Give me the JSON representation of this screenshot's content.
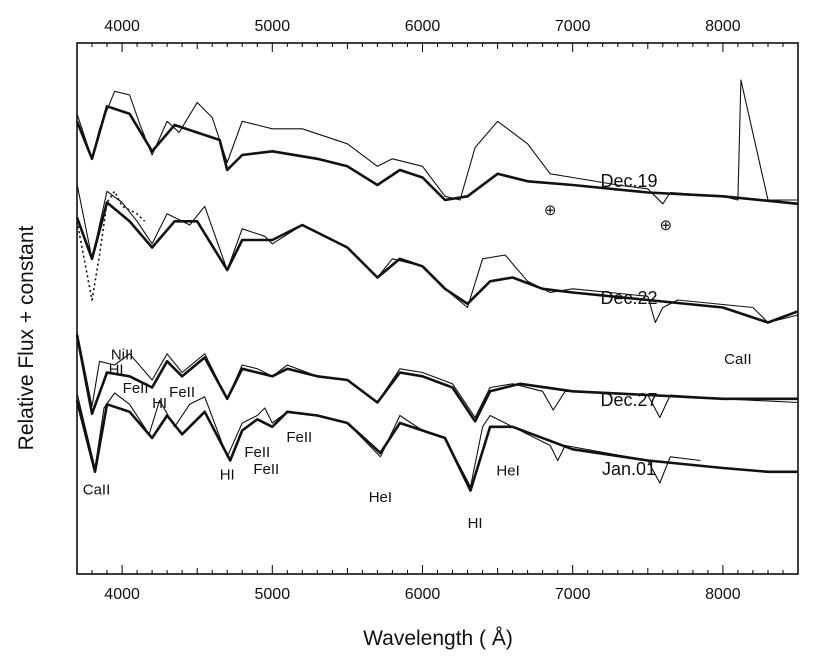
{
  "chart_data": {
    "type": "line",
    "title": "",
    "xlabel": "Wavelength ( Å)",
    "ylabel": "Relative Flux + constant",
    "xlim": [
      3700,
      8500
    ],
    "x_ticks": [
      4000,
      5000,
      6000,
      7000,
      8000
    ],
    "x_tick_labels": [
      "4000",
      "5000",
      "6000",
      "7000",
      "8000"
    ],
    "ticks_on_top_axis": true,
    "y_tick_labels": false,
    "grid": false,
    "epochs": [
      {
        "name": "Dec.19",
        "offset": 3.0
      },
      {
        "name": "Dec.22",
        "offset": 2.0
      },
      {
        "name": "Dec.27",
        "offset": 1.0
      },
      {
        "name": "Jan.01",
        "offset": 0.0
      }
    ],
    "series": [
      {
        "name": "Dec.19",
        "style": "thin observed",
        "x": [
          3700,
          3800,
          3850,
          3950,
          4050,
          4120,
          4200,
          4300,
          4380,
          4500,
          4600,
          4700,
          4800,
          4900,
          5000,
          5200,
          5500,
          5700,
          5800,
          6000,
          6150,
          6250,
          6350,
          6500,
          6700,
          6850,
          7000,
          7300,
          7500,
          7600,
          7650,
          8000,
          8100,
          8120,
          8300,
          8500
        ],
        "y": [
          1.15,
          0.55,
          0.95,
          1.45,
          1.4,
          1.0,
          0.6,
          1.05,
          0.9,
          1.3,
          1.1,
          0.5,
          1.05,
          1.0,
          0.95,
          0.95,
          0.75,
          0.45,
          0.55,
          0.45,
          0.05,
          0.0,
          0.7,
          1.05,
          0.75,
          0.35,
          0.3,
          0.2,
          0.15,
          -0.05,
          0.1,
          0.05,
          0.0,
          1.6,
          0.0,
          0.0
        ]
      },
      {
        "name": "Dec.19",
        "style": "thick synthetic",
        "x": [
          3700,
          3800,
          3900,
          4050,
          4200,
          4350,
          4500,
          4650,
          4700,
          4800,
          5000,
          5300,
          5500,
          5700,
          5850,
          6000,
          6150,
          6300,
          6500,
          6700,
          7000,
          7500,
          8000,
          8500
        ],
        "y": [
          1.05,
          0.55,
          1.25,
          1.15,
          0.65,
          1.0,
          0.9,
          0.8,
          0.4,
          0.6,
          0.65,
          0.55,
          0.45,
          0.2,
          0.4,
          0.3,
          0.0,
          0.05,
          0.35,
          0.25,
          0.2,
          0.1,
          0.05,
          -0.05
        ]
      },
      {
        "name": "Dec.22",
        "style": "thin observed",
        "x": [
          3700,
          3800,
          3900,
          4000,
          4100,
          4200,
          4300,
          4450,
          4550,
          4700,
          4800,
          4950,
          5000,
          5200,
          5500,
          5700,
          5800,
          6000,
          6150,
          6300,
          6400,
          6550,
          6700,
          6850,
          7000,
          7500,
          7550,
          7600,
          7700,
          8200,
          8300,
          8500
        ],
        "y": [
          1.55,
          0.55,
          1.45,
          1.3,
          1.05,
          0.75,
          1.15,
          1.0,
          1.25,
          0.4,
          0.95,
          0.85,
          0.75,
          1.0,
          0.7,
          0.3,
          0.55,
          0.45,
          0.15,
          -0.1,
          0.55,
          0.6,
          0.25,
          0.1,
          0.15,
          0.05,
          -0.3,
          -0.1,
          0.0,
          -0.1,
          -0.3,
          -0.2
        ]
      },
      {
        "name": "Dec.22",
        "style": "thick synthetic",
        "x": [
          3700,
          3800,
          3900,
          4050,
          4200,
          4350,
          4500,
          4700,
          4800,
          5000,
          5200,
          5500,
          5700,
          5850,
          6000,
          6150,
          6300,
          6450,
          6600,
          6800,
          7000,
          7500,
          8000,
          8300,
          8500
        ],
        "y": [
          1.1,
          0.55,
          1.3,
          1.05,
          0.7,
          1.05,
          1.05,
          0.4,
          0.8,
          0.8,
          1.0,
          0.7,
          0.3,
          0.55,
          0.45,
          0.15,
          -0.05,
          0.25,
          0.3,
          0.15,
          0.1,
          0.0,
          -0.1,
          -0.3,
          -0.15
        ]
      },
      {
        "name": "Dec.27",
        "style": "thin observed",
        "x": [
          3700,
          3800,
          3850,
          3950,
          4050,
          4200,
          4300,
          4400,
          4550,
          4700,
          4800,
          4900,
          5000,
          5100,
          5300,
          5500,
          5700,
          5850,
          6000,
          6200,
          6350,
          6450,
          6600,
          6800,
          6870,
          6950,
          7500,
          7580,
          7650,
          8000,
          8500
        ],
        "y": [
          0.85,
          -0.15,
          0.45,
          0.4,
          0.55,
          0.2,
          0.55,
          0.3,
          0.55,
          -0.05,
          0.4,
          0.35,
          0.25,
          0.4,
          0.25,
          0.2,
          -0.1,
          0.35,
          0.3,
          0.15,
          -0.3,
          0.1,
          0.15,
          0.05,
          -0.2,
          0.05,
          0.0,
          -0.3,
          0.0,
          -0.05,
          -0.1
        ]
      },
      {
        "name": "Dec.27",
        "style": "thick synthetic",
        "x": [
          3700,
          3800,
          3900,
          4050,
          4200,
          4300,
          4400,
          4550,
          4700,
          4800,
          4900,
          5000,
          5100,
          5300,
          5500,
          5700,
          5850,
          6000,
          6200,
          6350,
          6450,
          6650,
          7000,
          7500,
          8000,
          8500
        ],
        "y": [
          0.8,
          -0.25,
          0.3,
          0.25,
          0.1,
          0.45,
          0.25,
          0.5,
          -0.05,
          0.35,
          0.3,
          0.25,
          0.35,
          0.25,
          0.2,
          -0.1,
          0.3,
          0.25,
          0.1,
          -0.35,
          0.05,
          0.15,
          0.05,
          0.0,
          -0.05,
          -0.05
        ]
      },
      {
        "name": "Jan.01",
        "style": "thin observed",
        "x": [
          3700,
          3820,
          3880,
          3950,
          4050,
          4180,
          4250,
          4350,
          4450,
          4550,
          4700,
          4800,
          4900,
          4950,
          5000,
          5100,
          5300,
          5500,
          5720,
          5850,
          6000,
          6150,
          6320,
          6400,
          6450,
          6550,
          6850,
          6900,
          6950,
          7500,
          7580,
          7650,
          7850
        ],
        "y": [
          1.0,
          0.0,
          0.8,
          1.0,
          0.85,
          0.45,
          0.9,
          0.55,
          0.85,
          0.95,
          0.15,
          0.6,
          0.7,
          0.8,
          0.6,
          0.75,
          0.7,
          0.6,
          0.15,
          0.7,
          0.5,
          0.4,
          -0.25,
          0.55,
          0.7,
          0.6,
          0.3,
          0.1,
          0.3,
          0.1,
          -0.2,
          0.15,
          0.1
        ]
      },
      {
        "name": "Jan.01",
        "style": "thick synthetic",
        "x": [
          3700,
          3820,
          3900,
          4050,
          4200,
          4300,
          4400,
          4550,
          4720,
          4800,
          4900,
          5000,
          5100,
          5300,
          5500,
          5720,
          5850,
          6000,
          6150,
          6320,
          6450,
          6600,
          7000,
          7500,
          8000,
          8300,
          8500
        ],
        "y": [
          0.9,
          -0.05,
          0.85,
          0.75,
          0.4,
          0.7,
          0.45,
          0.75,
          0.1,
          0.5,
          0.65,
          0.55,
          0.75,
          0.7,
          0.6,
          0.2,
          0.6,
          0.5,
          0.4,
          -0.3,
          0.55,
          0.55,
          0.25,
          0.1,
          0.0,
          -0.05,
          -0.05
        ]
      },
      {
        "name": "Dec.22",
        "style": "dotted",
        "x": [
          3700,
          3800,
          3850,
          3900,
          3950,
          4000,
          4050,
          4100,
          4150
        ],
        "y": [
          1.05,
          0.0,
          0.6,
          1.3,
          1.45,
          1.25,
          1.2,
          1.15,
          1.05
        ]
      }
    ],
    "annotations": [
      {
        "text": "CaII",
        "x": 3830,
        "y": -0.35,
        "epoch": "Jan.01"
      },
      {
        "text": "NiII",
        "x": 4000,
        "y": 1.45,
        "epoch": "Jan.01"
      },
      {
        "text": "HI",
        "x": 3960,
        "y": 1.25,
        "epoch": "Jan.01"
      },
      {
        "text": "FeII",
        "x": 4090,
        "y": 1.0,
        "epoch": "Jan.01"
      },
      {
        "text": "HI",
        "x": 4250,
        "y": 0.8,
        "epoch": "Jan.01"
      },
      {
        "text": "FeII",
        "x": 4400,
        "y": 0.95,
        "epoch": "Jan.01"
      },
      {
        "text": "HI",
        "x": 4700,
        "y": -0.15,
        "epoch": "Jan.01"
      },
      {
        "text": "FeII",
        "x": 4900,
        "y": 0.15,
        "epoch": "Jan.01"
      },
      {
        "text": "FeII",
        "x": 4960,
        "y": -0.08,
        "epoch": "Jan.01"
      },
      {
        "text": "FeII",
        "x": 5180,
        "y": 0.35,
        "epoch": "Jan.01"
      },
      {
        "text": "HeI",
        "x": 5720,
        "y": -0.45,
        "epoch": "Jan.01"
      },
      {
        "text": "HI",
        "x": 6350,
        "y": -0.8,
        "epoch": "Jan.01"
      },
      {
        "text": "HeI",
        "x": 6570,
        "y": -0.1,
        "epoch": "Jan.01"
      },
      {
        "text": "CaII",
        "x": 8100,
        "y": -0.85,
        "epoch": "Dec.22"
      },
      {
        "text": "⊕",
        "x": 6850,
        "y": -0.2,
        "epoch": "Dec.19"
      },
      {
        "text": "⊕",
        "x": 7620,
        "y": -0.4,
        "epoch": "Dec.19"
      }
    ]
  }
}
